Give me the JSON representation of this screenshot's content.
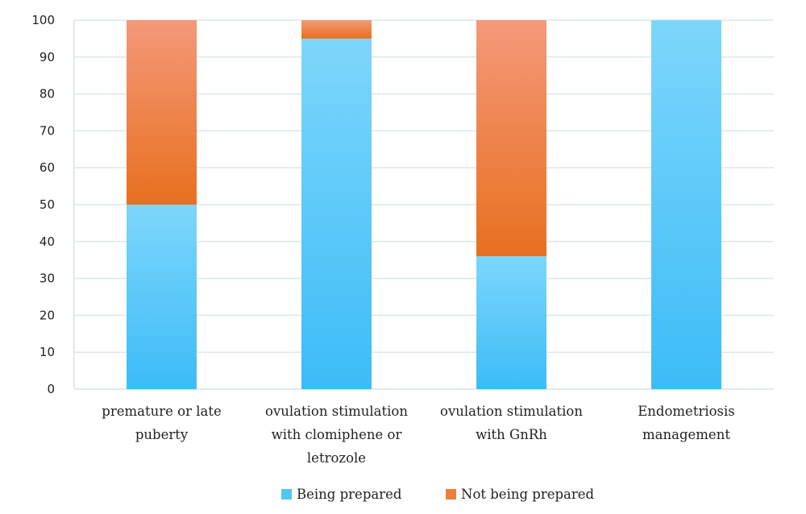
{
  "chart_data": {
    "type": "bar",
    "stacked": true,
    "categories": [
      [
        "premature or late",
        "puberty"
      ],
      [
        "ovulation stimulation",
        "with clomiphene or",
        "letrozole"
      ],
      [
        "ovulation stimulation",
        "with GnRh"
      ],
      [
        "Endometriosis",
        "management"
      ]
    ],
    "series": [
      {
        "name": "Being prepared",
        "values": [
          50,
          95,
          36,
          100
        ],
        "color": "#4fc8f5"
      },
      {
        "name": "Not being prepared",
        "values": [
          50,
          5,
          64,
          0
        ],
        "color": "#ee7f3a"
      }
    ],
    "ylim": [
      0,
      100
    ],
    "yticks": [
      0,
      10,
      20,
      30,
      40,
      50,
      60,
      70,
      80,
      90,
      100
    ],
    "grid": true,
    "legend_position": "bottom",
    "title": "",
    "xlabel": "",
    "ylabel": ""
  }
}
